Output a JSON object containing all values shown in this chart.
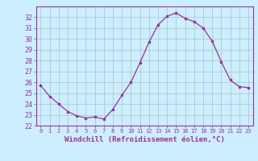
{
  "hours": [
    0,
    1,
    2,
    3,
    4,
    5,
    6,
    7,
    8,
    9,
    10,
    11,
    12,
    13,
    14,
    15,
    16,
    17,
    18,
    19,
    20,
    21,
    22,
    23
  ],
  "values": [
    25.7,
    24.7,
    24.0,
    23.3,
    22.9,
    22.7,
    22.8,
    22.6,
    23.5,
    24.8,
    26.0,
    27.8,
    29.7,
    31.3,
    32.1,
    32.4,
    31.9,
    31.6,
    31.0,
    29.8,
    27.9,
    26.2,
    25.6,
    25.5
  ],
  "xlim": [
    -0.5,
    23.5
  ],
  "ylim": [
    22,
    33
  ],
  "yticks": [
    22,
    23,
    24,
    25,
    26,
    27,
    28,
    29,
    30,
    31,
    32
  ],
  "xticks": [
    0,
    1,
    2,
    3,
    4,
    5,
    6,
    7,
    8,
    9,
    10,
    11,
    12,
    13,
    14,
    15,
    16,
    17,
    18,
    19,
    20,
    21,
    22,
    23
  ],
  "line_color": "#993399",
  "marker": "s",
  "marker_size": 1.8,
  "bg_color": "#cceeff",
  "grid_color": "#aacccc",
  "xlabel": "Windchill (Refroidissement éolien,°C)",
  "xlabel_color": "#993399",
  "tick_color": "#993399",
  "ytick_fontsize": 6.0,
  "xtick_fontsize": 5.0,
  "xlabel_fontsize": 6.5
}
